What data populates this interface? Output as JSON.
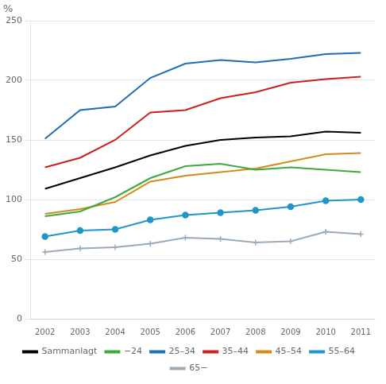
{
  "chart_data": {
    "type": "line",
    "ylabel": "%",
    "x": [
      2002,
      2003,
      2004,
      2005,
      2006,
      2007,
      2008,
      2009,
      2010,
      2011
    ],
    "series": [
      {
        "name": "Sammanlagt",
        "color": "#000000",
        "values": [
          109,
          118,
          127,
          137,
          145,
          150,
          152,
          153,
          157,
          156
        ]
      },
      {
        "name": "−24",
        "color": "#3daa3d",
        "values": [
          86,
          90,
          102,
          118,
          128,
          130,
          125,
          127,
          125,
          123
        ]
      },
      {
        "name": "25–34",
        "color": "#1e6eb5",
        "values": [
          151,
          175,
          178,
          202,
          214,
          217,
          215,
          218,
          222,
          223
        ]
      },
      {
        "name": "35–44",
        "color": "#cc2020",
        "values": [
          127,
          135,
          150,
          173,
          175,
          185,
          190,
          198,
          201,
          203
        ]
      },
      {
        "name": "45–54",
        "color": "#d48b1a",
        "values": [
          88,
          92,
          98,
          115,
          120,
          123,
          126,
          132,
          138,
          139
        ]
      },
      {
        "name": "55–64",
        "color": "#2196c8",
        "marker": "circle",
        "values": [
          69,
          74,
          75,
          83,
          87,
          89,
          91,
          94,
          99,
          100
        ]
      },
      {
        "name": "65−",
        "color": "#9aabba",
        "marker": "plus",
        "values": [
          56,
          59,
          60,
          63,
          68,
          67,
          64,
          65,
          73,
          71
        ]
      }
    ],
    "xlim": [
      2001.6,
      2011.4
    ],
    "xticks": [
      2002,
      2003,
      2004,
      2005,
      2006,
      2007,
      2008,
      2009,
      2010,
      2011
    ],
    "ylim": [
      0,
      250
    ],
    "yticks": [
      0,
      50,
      100,
      150,
      200,
      250
    ],
    "grid": true,
    "legend": "bottom"
  }
}
